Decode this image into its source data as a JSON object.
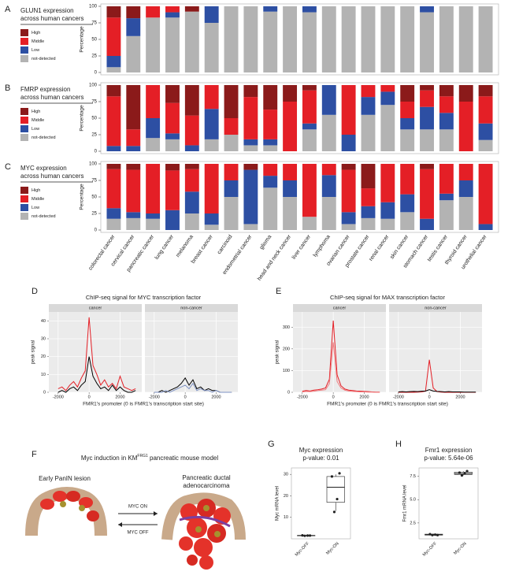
{
  "chart_data": [
    {
      "panel": "A",
      "type": "stacked-bar",
      "title": [
        "GLUN1 expression",
        "across human cancers"
      ],
      "ylabel": "Percentage",
      "ylim": [
        0,
        100
      ],
      "yticks": [
        0,
        25,
        50,
        75,
        100
      ],
      "series": [
        {
          "name": "High",
          "color": "#8b1a1a",
          "values": [
            17,
            18,
            0,
            0,
            8,
            0,
            0,
            0,
            0,
            0,
            0,
            0,
            0,
            0,
            0,
            0,
            0,
            0,
            0,
            0
          ]
        },
        {
          "name": "Middle",
          "color": "#e41f26",
          "values": [
            58,
            0,
            17,
            9,
            0,
            0,
            0,
            0,
            0,
            0,
            0,
            0,
            0,
            0,
            0,
            0,
            0,
            0,
            0,
            0
          ]
        },
        {
          "name": "Low",
          "color": "#2d4fa3",
          "values": [
            17,
            27,
            0,
            8,
            0,
            25,
            0,
            0,
            8,
            0,
            9,
            0,
            0,
            0,
            0,
            0,
            9,
            0,
            0,
            0
          ]
        },
        {
          "name": "not-detected",
          "color": "#b3b3b3",
          "values": [
            8,
            55,
            83,
            83,
            92,
            75,
            100,
            100,
            92,
            100,
            91,
            100,
            100,
            100,
            100,
            100,
            91,
            100,
            100,
            100
          ]
        }
      ]
    },
    {
      "panel": "B",
      "type": "stacked-bar",
      "title": [
        "FMRP expression",
        "across human cancers"
      ],
      "ylabel": "Percentage",
      "ylim": [
        0,
        100
      ],
      "yticks": [
        0,
        25,
        50,
        75,
        100
      ],
      "series": [
        {
          "name": "High",
          "color": "#8b1a1a",
          "values": [
            17,
            67,
            0,
            27,
            46,
            0,
            50,
            18,
            37,
            25,
            8,
            0,
            0,
            0,
            0,
            25,
            8,
            17,
            25,
            17
          ]
        },
        {
          "name": "Middle",
          "color": "#e41f26",
          "values": [
            75,
            25,
            50,
            46,
            45,
            36,
            25,
            64,
            45,
            75,
            50,
            0,
            75,
            18,
            10,
            25,
            25,
            25,
            75,
            41
          ]
        },
        {
          "name": "Low",
          "color": "#2d4fa3",
          "values": [
            8,
            8,
            30,
            9,
            9,
            46,
            0,
            9,
            9,
            0,
            9,
            45,
            25,
            27,
            20,
            17,
            34,
            25,
            0,
            25
          ]
        },
        {
          "name": "not-detected",
          "color": "#b3b3b3",
          "values": [
            0,
            0,
            20,
            18,
            0,
            18,
            25,
            9,
            9,
            0,
            33,
            55,
            0,
            55,
            70,
            33,
            33,
            33,
            0,
            17
          ]
        }
      ]
    },
    {
      "panel": "C",
      "type": "stacked-bar",
      "title": [
        "MYC expression",
        "across human cancers"
      ],
      "ylabel": "Percentage",
      "ylim": [
        0,
        100
      ],
      "yticks": [
        0,
        25,
        50,
        75,
        100
      ],
      "categories": [
        "colorectal cancer",
        "cervical cancer",
        "pancreatic cancer",
        "lung cancer",
        "melanoma",
        "breast cancer",
        "carcinoid",
        "endometrial cancer",
        "glioma",
        "head and neck cancer",
        "liver cancer",
        "lymphoma",
        "ovarian cancer",
        "prostate cancer",
        "renal cancer",
        "skin cancer",
        "stomach cancer",
        "testis cancer",
        "thyroid cancer",
        "urothelial cancer"
      ],
      "series": [
        {
          "name": "High",
          "color": "#8b1a1a",
          "values": [
            8,
            9,
            0,
            10,
            8,
            0,
            0,
            9,
            0,
            0,
            0,
            0,
            9,
            37,
            0,
            0,
            8,
            0,
            0,
            0
          ]
        },
        {
          "name": "Middle",
          "color": "#e41f26",
          "values": [
            59,
            64,
            75,
            60,
            34,
            75,
            25,
            0,
            18,
            25,
            80,
            17,
            64,
            27,
            58,
            46,
            75,
            45,
            25,
            91
          ]
        },
        {
          "name": "Low",
          "color": "#2d4fa3",
          "values": [
            16,
            9,
            8,
            30,
            33,
            17,
            25,
            82,
            18,
            25,
            0,
            33,
            18,
            18,
            25,
            27,
            17,
            10,
            25,
            9
          ]
        },
        {
          "name": "not-detected",
          "color": "#b3b3b3",
          "values": [
            17,
            18,
            17,
            0,
            25,
            8,
            50,
            9,
            64,
            50,
            20,
            50,
            9,
            18,
            17,
            27,
            0,
            45,
            50,
            0
          ]
        }
      ]
    },
    {
      "panel": "D",
      "type": "facet-line",
      "title": "ChIP-seq signal for MYC transcription factor",
      "ylabel": "peak signal",
      "xlabel": "FMR1's promoter (0 is FMR1's transcription start site)",
      "xlim": [
        -2600,
        3400
      ],
      "xticks": [
        -2000,
        0,
        2000
      ],
      "ylim": [
        0,
        45
      ],
      "yticks": [
        0,
        10,
        20,
        30,
        40
      ],
      "grid": true,
      "x": [
        -2000,
        -1750,
        -1500,
        -1250,
        -1000,
        -750,
        -500,
        -250,
        0,
        250,
        500,
        750,
        1000,
        1250,
        1500,
        1750,
        2000,
        2250,
        2500,
        2750,
        3000
      ],
      "facets": [
        {
          "name": "cancer",
          "series": [
            {
              "color": "#e41f26",
              "values": [
                2,
                3,
                1,
                4,
                6,
                3,
                8,
                12,
                42,
                15,
                10,
                4,
                7,
                3,
                5,
                2,
                9,
                3,
                2,
                1,
                2
              ]
            },
            {
              "color": "#000000",
              "values": [
                0,
                1,
                0,
                2,
                3,
                1,
                4,
                6,
                20,
                9,
                5,
                2,
                3,
                1,
                4,
                1,
                3,
                1,
                0,
                0,
                1
              ]
            }
          ]
        },
        {
          "name": "non-cancer",
          "series": [
            {
              "color": "#000000",
              "values": [
                0,
                0,
                1,
                0,
                1,
                2,
                3,
                5,
                8,
                4,
                7,
                2,
                3,
                1,
                2,
                1,
                1,
                0,
                0,
                0,
                0
              ]
            },
            {
              "color": "#7f93c4",
              "values": [
                0,
                0,
                0,
                1,
                0,
                1,
                2,
                3,
                4,
                2,
                5,
                1,
                2,
                1,
                1,
                0,
                1,
                0,
                0,
                0,
                0
              ]
            }
          ]
        }
      ]
    },
    {
      "panel": "E",
      "type": "facet-line",
      "title": "ChIP-seq signal for MAX transcription factor",
      "ylabel": "peak signal",
      "xlabel": "FMR1's promoter (0 is FMR1's transcription start site)",
      "xlim": [
        -2600,
        3400
      ],
      "xticks": [
        -2000,
        0,
        2000
      ],
      "ylim": [
        0,
        370
      ],
      "yticks": [
        0,
        100,
        200,
        300
      ],
      "grid": true,
      "x": [
        -2000,
        -1750,
        -1500,
        -1250,
        -1000,
        -750,
        -500,
        -250,
        0,
        250,
        500,
        750,
        1000,
        1250,
        1500,
        1750,
        2000,
        2250,
        2500,
        2750,
        3000
      ],
      "facets": [
        {
          "name": "cancer",
          "series": [
            {
              "color": "#e41f26",
              "values": [
                5,
                8,
                6,
                10,
                12,
                15,
                20,
                60,
                330,
                80,
                30,
                15,
                10,
                8,
                6,
                5,
                4,
                3,
                2,
                1,
                1
              ]
            },
            {
              "color": "#f07a7d",
              "values": [
                2,
                4,
                3,
                5,
                8,
                10,
                12,
                40,
                230,
                50,
                20,
                10,
                6,
                4,
                3,
                2,
                2,
                1,
                1,
                0,
                0
              ]
            }
          ]
        },
        {
          "name": "non-cancer",
          "series": [
            {
              "color": "#e41f26",
              "values": [
                0,
                0,
                0,
                0,
                0,
                1,
                2,
                5,
                150,
                20,
                3,
                1,
                0,
                0,
                0,
                0,
                0,
                0,
                0,
                0,
                0
              ]
            },
            {
              "color": "#000000",
              "values": [
                2,
                3,
                2,
                3,
                4,
                3,
                5,
                6,
                12,
                6,
                4,
                3,
                2,
                3,
                2,
                2,
                2,
                1,
                1,
                1,
                1
              ]
            }
          ]
        }
      ]
    },
    {
      "panel": "G",
      "type": "box",
      "title": "Myc expression",
      "subtitle": "p-value: 0.01",
      "ylabel": "Myc mRNA level",
      "categories": [
        "Myc-OFF",
        "Myc-ON"
      ],
      "ylim": [
        0,
        33
      ],
      "yticks": [
        10,
        20,
        30
      ],
      "color": "#222222",
      "boxes": [
        {
          "min": 1.3,
          "q1": 1.4,
          "median": 1.5,
          "q3": 1.6,
          "max": 1.7,
          "points": [
            1.4,
            1.5,
            1.6,
            1.5
          ]
        },
        {
          "min": 13,
          "q1": 17,
          "median": 24,
          "q3": 29,
          "max": 30,
          "points": [
            12.5,
            18.5,
            29,
            30.5
          ]
        }
      ]
    },
    {
      "panel": "H",
      "type": "box",
      "title": "Fmr1 expression",
      "subtitle": "p-value: 5.64e-06",
      "ylabel": "Fmr1 mRNA level",
      "categories": [
        "Myc-OFF",
        "Myc-ON"
      ],
      "ylim": [
        0.8,
        8.4
      ],
      "yticks": [
        2.5,
        {
          "value": 5,
          "label": "5.0"
        },
        7.5
      ],
      "color": "#222222",
      "boxes": [
        {
          "min": 1.15,
          "q1": 1.2,
          "median": 1.25,
          "q3": 1.3,
          "max": 1.35,
          "points": [
            1.2,
            1.25,
            1.3,
            1.2
          ]
        },
        {
          "min": 7.6,
          "q1": 7.7,
          "median": 7.8,
          "q3": 7.95,
          "max": 8.05,
          "points": [
            7.6,
            7.8,
            7.9,
            8.05
          ]
        }
      ]
    }
  ],
  "diagram": {
    "panel": "F",
    "title": [
      "Myc induction in KM",
      "FRG1",
      " pancreatic mouse model"
    ],
    "left_label": "Early PanIN lesion",
    "right_label": [
      "Pancreatic ductal",
      "adenocarcinoma"
    ],
    "on_label": "MYC ON",
    "off_label": "MYC OFF"
  }
}
